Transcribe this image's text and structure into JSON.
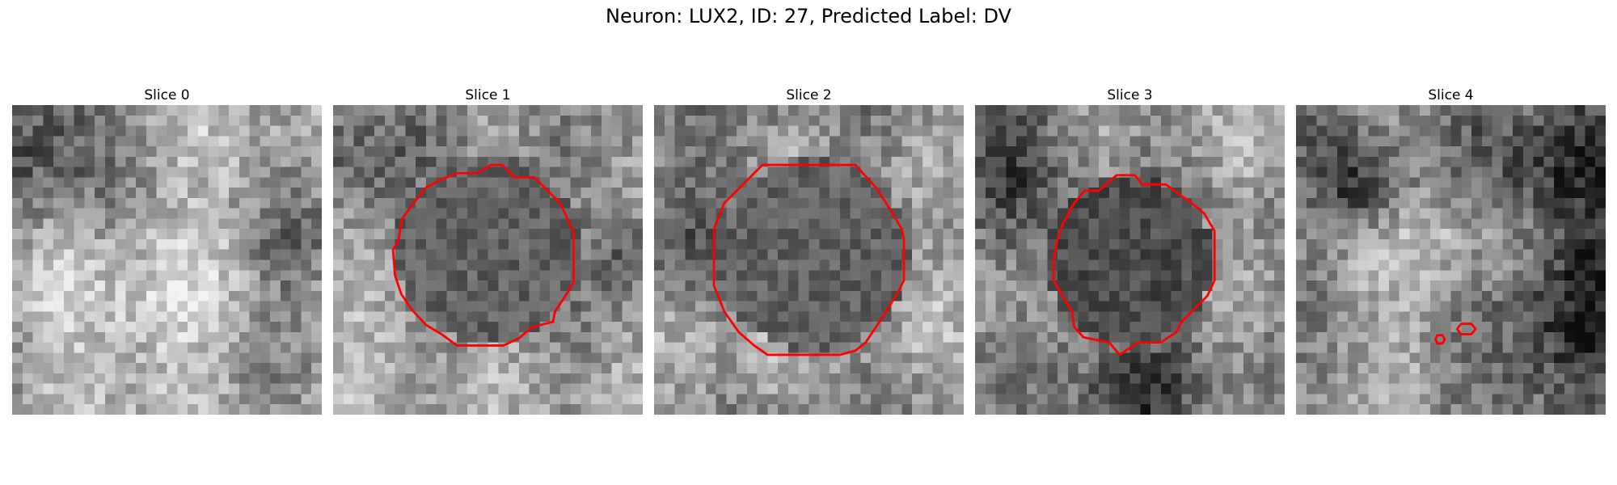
{
  "figure": {
    "title": "Neuron: LUX2, ID: 27, Predicted Label: DV"
  },
  "panels": [
    {
      "title": "Slice 0",
      "seed": 11,
      "contour_color": "#ff0000",
      "has_contour": false
    },
    {
      "title": "Slice 1",
      "seed": 23,
      "contour_color": "#ff0000",
      "has_contour": true
    },
    {
      "title": "Slice 2",
      "seed": 37,
      "contour_color": "#ff0000",
      "has_contour": true
    },
    {
      "title": "Slice 3",
      "seed": 53,
      "contour_color": "#ff0000",
      "has_contour": true
    },
    {
      "title": "Slice 4",
      "seed": 71,
      "contour_color": "#ff0000",
      "has_contour": true
    }
  ],
  "colormap": "gray"
}
